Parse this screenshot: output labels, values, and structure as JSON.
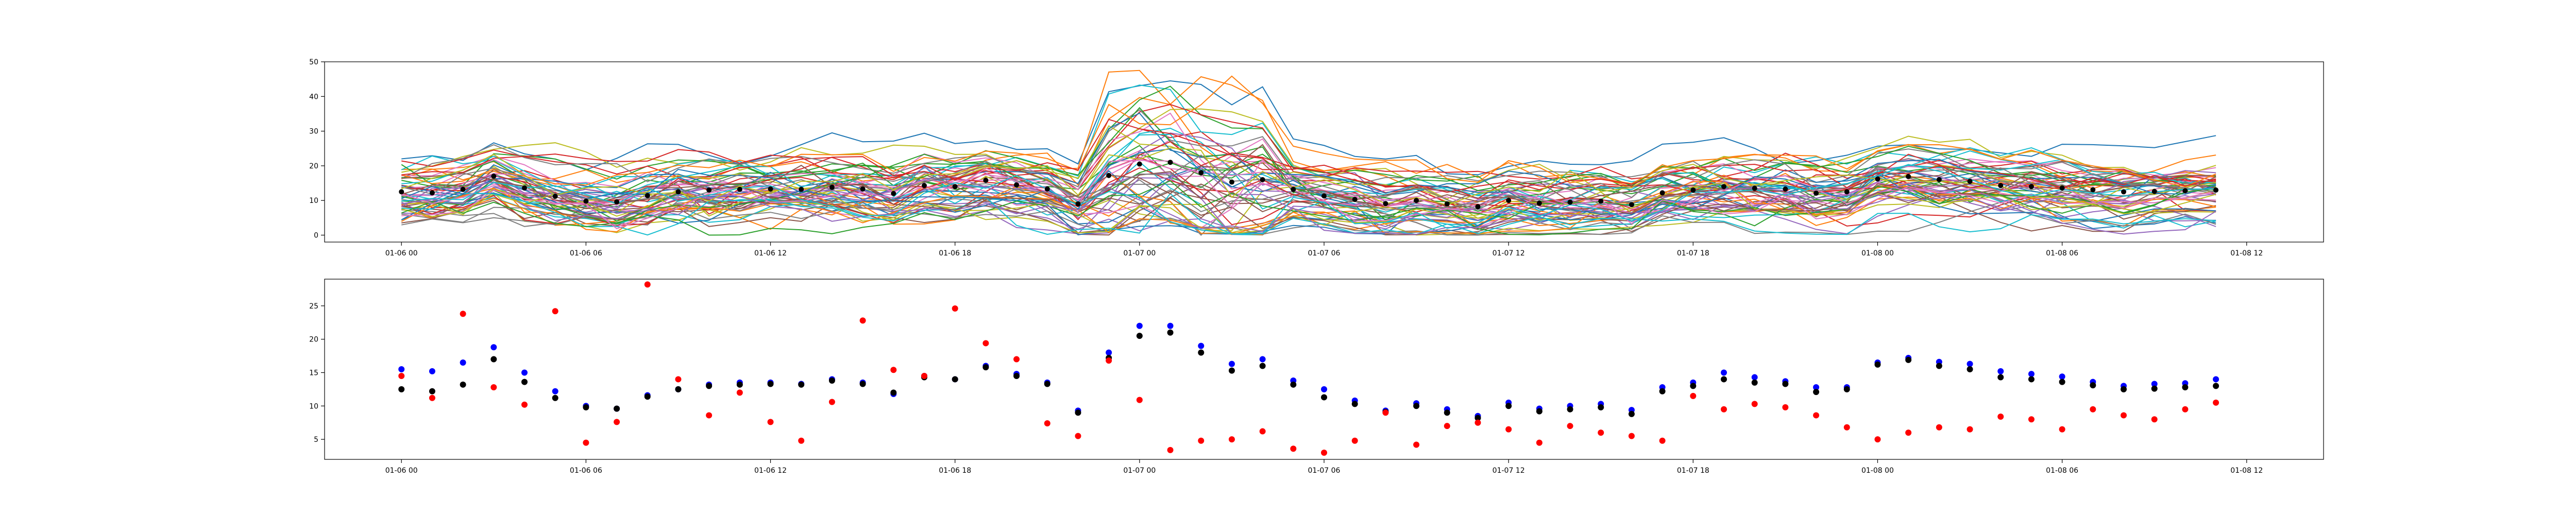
{
  "chart_data": [
    {
      "type": "line",
      "panel": "top",
      "title": "",
      "xlabel": "",
      "ylabel": "",
      "x_ticks": [
        "01-06 00",
        "01-06 06",
        "01-06 12",
        "01-06 18",
        "01-07 00",
        "01-07 06",
        "01-07 12",
        "01-07 18",
        "01-08 00",
        "01-08 06",
        "01-08 12"
      ],
      "y_ticks": [
        "0",
        "10",
        "20",
        "30",
        "40",
        "50"
      ],
      "xlim_hours": [
        -2.5,
        62.5
      ],
      "ylim": [
        -2,
        50
      ],
      "grid": false,
      "legend": "none",
      "series_count": 60,
      "series_colors": [
        "#1f77b4",
        "#ff7f0e",
        "#2ca02c",
        "#d62728",
        "#9467bd",
        "#8c564b",
        "#e377c2",
        "#7f7f7f",
        "#bcbd22",
        "#17becf"
      ],
      "mean_marker_color": "#000000",
      "mean_series": {
        "name": "",
        "values": [
          12.5,
          12.2,
          13.2,
          17.0,
          13.6,
          11.2,
          9.8,
          9.6,
          11.4,
          12.5,
          13.0,
          13.2,
          13.3,
          13.2,
          13.8,
          13.3,
          12.0,
          14.3,
          14.0,
          15.8,
          14.5,
          13.3,
          9.0,
          17.2,
          20.5,
          21.0,
          18.0,
          15.3,
          16.0,
          13.2,
          11.3,
          10.3,
          9.1,
          10.0,
          9.0,
          8.2,
          10.0,
          9.2,
          9.5,
          9.8,
          8.8,
          12.2,
          13.0,
          14.0,
          13.5,
          13.3,
          12.1,
          12.5,
          16.2,
          16.9,
          16.0,
          15.5,
          14.3,
          14.0,
          13.6,
          13.1,
          12.5,
          12.6,
          12.8,
          13.0
        ]
      }
    },
    {
      "type": "scatter",
      "panel": "bottom",
      "title": "",
      "xlabel": "",
      "ylabel": "",
      "x_ticks": [
        "01-06 00",
        "01-06 06",
        "01-06 12",
        "01-06 18",
        "01-07 00",
        "01-07 06",
        "01-07 12",
        "01-07 18",
        "01-08 00",
        "01-08 06",
        "01-08 12"
      ],
      "y_ticks": [
        "5",
        "10",
        "15",
        "20",
        "25"
      ],
      "xlim_hours": [
        -2.5,
        62.5
      ],
      "ylim": [
        2,
        29
      ],
      "grid": false,
      "legend": "none",
      "series": [
        {
          "name": "",
          "color": "#0000ff",
          "values": [
            15.5,
            15.2,
            16.5,
            18.8,
            15.0,
            12.2,
            10.0,
            9.6,
            11.6,
            12.5,
            13.2,
            13.5,
            13.5,
            13.3,
            14.0,
            13.5,
            11.8,
            14.5,
            14.0,
            16.0,
            14.8,
            13.5,
            9.3,
            18.0,
            22.0,
            22.0,
            19.0,
            16.3,
            17.0,
            13.8,
            12.5,
            10.8,
            9.3,
            10.4,
            9.5,
            8.5,
            10.5,
            9.6,
            10.0,
            10.3,
            9.4,
            12.8,
            13.5,
            15.0,
            14.3,
            13.7,
            12.8,
            12.8,
            16.5,
            17.2,
            16.6,
            16.3,
            15.2,
            14.8,
            14.4,
            13.6,
            13.0,
            13.3,
            13.4,
            14.0
          ]
        },
        {
          "name": "",
          "color": "#000000",
          "values": [
            12.5,
            12.2,
            13.2,
            17.0,
            13.6,
            11.2,
            9.8,
            9.6,
            11.4,
            12.5,
            13.0,
            13.2,
            13.3,
            13.2,
            13.8,
            13.3,
            12.0,
            14.3,
            14.0,
            15.8,
            14.5,
            13.3,
            9.0,
            17.2,
            20.5,
            21.0,
            18.0,
            15.3,
            16.0,
            13.2,
            11.3,
            10.3,
            9.1,
            10.0,
            9.0,
            8.2,
            10.0,
            9.2,
            9.5,
            9.8,
            8.8,
            12.2,
            13.0,
            14.0,
            13.5,
            13.3,
            12.1,
            12.5,
            16.2,
            16.9,
            16.0,
            15.5,
            14.3,
            14.0,
            13.6,
            13.1,
            12.5,
            12.6,
            12.8,
            13.0
          ]
        },
        {
          "name": "",
          "color": "#ff0000",
          "values": [
            14.5,
            11.2,
            23.8,
            12.8,
            10.2,
            24.2,
            4.5,
            7.6,
            28.2,
            14.0,
            8.6,
            12.0,
            7.6,
            4.8,
            10.6,
            22.8,
            15.4,
            14.5,
            24.6,
            19.4,
            17.0,
            7.4,
            5.5,
            16.8,
            10.9,
            3.4,
            4.8,
            5.0,
            6.2,
            3.6,
            3.0,
            4.8,
            9.0,
            4.2,
            7.0,
            7.5,
            6.5,
            4.5,
            7.0,
            6.0,
            5.5,
            4.8,
            11.5,
            9.5,
            10.3,
            9.8,
            8.6,
            6.8,
            5.0,
            6.0,
            6.8,
            6.5,
            8.4,
            8.0,
            6.5,
            9.5,
            8.6,
            8.0,
            9.5,
            10.5
          ]
        }
      ]
    }
  ]
}
